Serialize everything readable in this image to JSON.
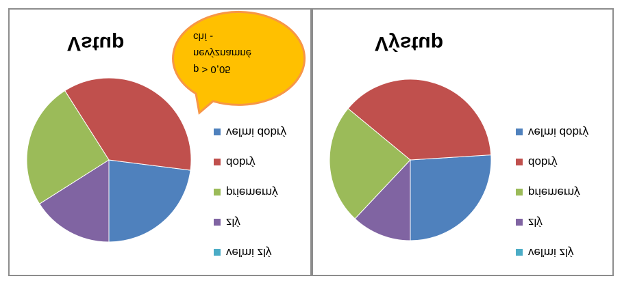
{
  "colors": {
    "frame": "#8c8c8c",
    "callout_fill": "#ffc000",
    "callout_stroke": "#f79646"
  },
  "chart_data": [
    {
      "type": "pie",
      "title": "Vstup",
      "legend": "right",
      "slices": [
        {
          "label": "veľmi dobrý",
          "value": 23,
          "color": "#4f81bd"
        },
        {
          "label": "dobrý",
          "value": 36,
          "color": "#c0504d"
        },
        {
          "label": "priemerný",
          "value": 25,
          "color": "#9bbb59"
        },
        {
          "label": "zlý",
          "value": 16,
          "color": "#8064a2"
        },
        {
          "label": "veľmi zlý",
          "value": 0,
          "color": "#4bacc6"
        }
      ]
    },
    {
      "type": "pie",
      "title": "Výstup",
      "legend": "right",
      "slices": [
        {
          "label": "veľmi dobrý",
          "value": 26,
          "color": "#4f81bd"
        },
        {
          "label": "dobrý",
          "value": 38,
          "color": "#c0504d"
        },
        {
          "label": "priemerný",
          "value": 24,
          "color": "#9bbb59"
        },
        {
          "label": "zlý",
          "value": 12,
          "color": "#8064a2"
        },
        {
          "label": "veľmi zlý",
          "value": 0,
          "color": "#4bacc6"
        }
      ]
    }
  ],
  "callout": {
    "lines": [
      "p > 0,05",
      "nevýznamné",
      "chí -"
    ]
  }
}
